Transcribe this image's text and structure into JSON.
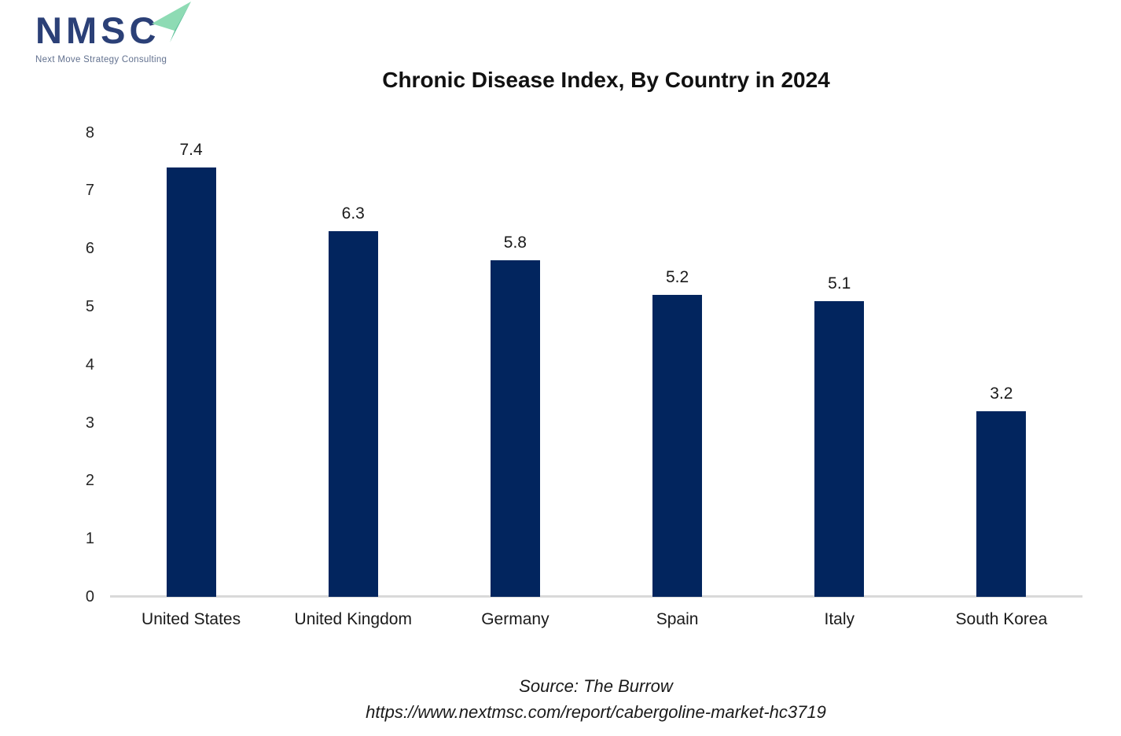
{
  "logo": {
    "wordmark": "NMSC",
    "tagline": "Next Move Strategy Consulting",
    "brand_navy": "#2B4077",
    "arrow_green_light": "#8EDBB4",
    "arrow_green_dark": "#5FC39A"
  },
  "chart_data": {
    "type": "bar",
    "title": "Chronic Disease Index, By Country in 2024",
    "categories": [
      "United States",
      "United Kingdom",
      "Germany",
      "Spain",
      "Italy",
      "South Korea"
    ],
    "values": [
      7.4,
      6.3,
      5.8,
      5.2,
      5.1,
      3.2
    ],
    "value_labels": [
      "7.4",
      "6.3",
      "5.8",
      "5.2",
      "5.1",
      "3.2"
    ],
    "xlabel": "",
    "ylabel": "",
    "ylim": [
      0,
      8
    ],
    "yticks": [
      0,
      1,
      2,
      3,
      4,
      5,
      6,
      7,
      8
    ],
    "grid": false,
    "legend": false,
    "bar_color": "#02255E",
    "axis_line_color": "#D9D9D9"
  },
  "footer": {
    "source": "Source: The Burrow",
    "url": "https://www.nextmsc.com/report/cabergoline-market-hc3719"
  }
}
